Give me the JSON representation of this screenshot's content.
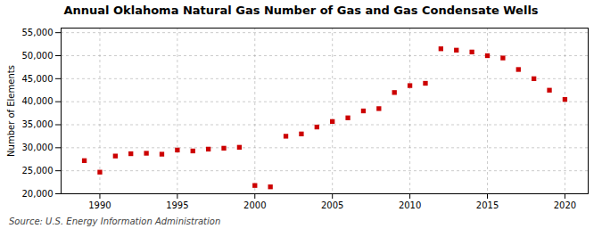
{
  "chart_data": {
    "type": "scatter",
    "title": "Annual Oklahoma Natural Gas Number of Gas and Gas Condensate Wells",
    "ylabel": "Number of Elements",
    "source": "Source: U.S. Energy Information Administration",
    "x": [
      1989,
      1990,
      1991,
      1992,
      1993,
      1994,
      1995,
      1996,
      1997,
      1998,
      1999,
      2000,
      2001,
      2002,
      2003,
      2004,
      2005,
      2006,
      2007,
      2008,
      2009,
      2010,
      2011,
      2012,
      2013,
      2014,
      2015,
      2016,
      2017,
      2018,
      2019,
      2020
    ],
    "values": [
      27200,
      24700,
      28200,
      28700,
      28800,
      28600,
      29500,
      29300,
      29700,
      29900,
      30100,
      21800,
      21500,
      32500,
      33000,
      34500,
      35700,
      36500,
      38000,
      38500,
      42000,
      43500,
      44000,
      51500,
      51200,
      50800,
      50000,
      49500,
      47000,
      45000,
      42500,
      40500
    ],
    "color": "#cc0000",
    "marker": "square",
    "xlim": [
      1987.5,
      2021.5
    ],
    "ylim": [
      20000,
      56000
    ],
    "xticks": [
      1990,
      1995,
      2000,
      2005,
      2010,
      2015,
      2020
    ],
    "yticks": [
      {
        "value": 20000,
        "label": "20,000"
      },
      {
        "value": 25000,
        "label": "25,000"
      },
      {
        "value": 30000,
        "label": "30,000"
      },
      {
        "value": 35000,
        "label": "35,000"
      },
      {
        "value": 40000,
        "label": "40,000"
      },
      {
        "value": 45000,
        "label": "45,000"
      },
      {
        "value": 50000,
        "label": "50,000"
      },
      {
        "value": 55000,
        "label": "55,000"
      }
    ],
    "grid": true
  }
}
